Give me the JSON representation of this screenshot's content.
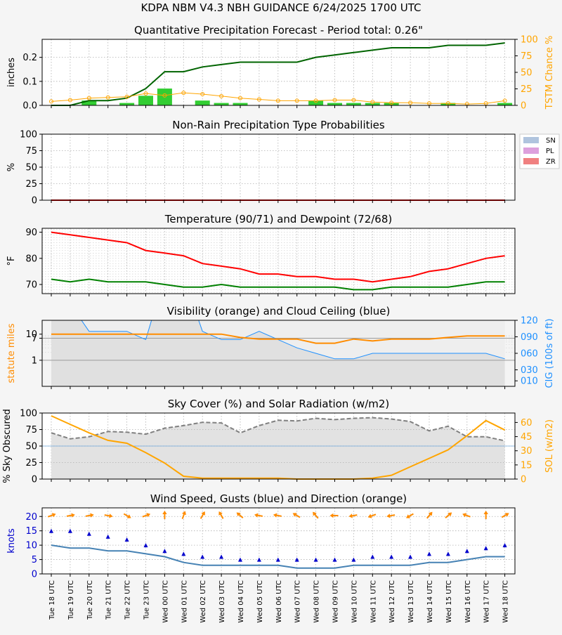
{
  "header": {
    "title": "KDPA   NBM V4.3 NBH GUIDANCE    6/24/2025  1700 UTC"
  },
  "colors": {
    "qpf_line": "#006400",
    "qpf_bar": "#32cd32",
    "tstm": "#ffa500",
    "sn": "#b0c4de",
    "pl": "#dda0dd",
    "zr": "#f08080",
    "nonrain_line": "#d00000",
    "temp": "#ff0000",
    "dew": "#008000",
    "vis": "#ff8c00",
    "cig": "#1e90ff",
    "sky_line": "#808080",
    "sky_fill": "#e2e2e2",
    "sol": "#ffa500",
    "wind": "#4682b4",
    "gust": "#0000cd",
    "dir": "#ff8c00",
    "axis_blue": "#0000cd"
  },
  "chart_data": [
    {
      "id": "qpf",
      "type": "bar",
      "title": "Quantitative Precipitation Forecast - Period total: 0.26\"",
      "ylabel": "inches",
      "ylabel_right": "TSTM Chance %",
      "ylim": [
        0,
        0.275
      ],
      "yticks": [
        "0.0",
        "0.1",
        "0.2"
      ],
      "ytick_values": [
        0,
        0.1,
        0.2
      ],
      "ylim_right": [
        0,
        100
      ],
      "yticks_right": [
        "0",
        "25",
        "50",
        "75",
        "100"
      ],
      "series": [
        {
          "name": "QPF hourly",
          "kind": "bar",
          "values": [
            0,
            0,
            0.02,
            0,
            0.01,
            0.04,
            0.07,
            0,
            0.02,
            0.01,
            0.01,
            0,
            0,
            0,
            0.02,
            0.01,
            0.01,
            0.01,
            0.01,
            0,
            0,
            0.01,
            0,
            0,
            0.01
          ]
        },
        {
          "name": "QPF accumulated",
          "kind": "line",
          "values": [
            0,
            0,
            0.02,
            0.02,
            0.03,
            0.07,
            0.14,
            0.14,
            0.16,
            0.17,
            0.18,
            0.18,
            0.18,
            0.18,
            0.2,
            0.21,
            0.22,
            0.23,
            0.24,
            0.24,
            0.24,
            0.25,
            0.25,
            0.25,
            0.26
          ]
        },
        {
          "name": "TSTM",
          "kind": "line",
          "axis": "right",
          "values": [
            6,
            8,
            11,
            12,
            13,
            18,
            15,
            19,
            17,
            14,
            11,
            9,
            7,
            7,
            7,
            8,
            8,
            5,
            4,
            4,
            3,
            3,
            2,
            3,
            7
          ]
        }
      ]
    },
    {
      "id": "ptype",
      "type": "area",
      "title": "Non-Rain Precipitation Type Probabilities",
      "ylabel": "%",
      "ylim": [
        0,
        100
      ],
      "yticks": [
        "0",
        "25",
        "50",
        "75",
        "100"
      ],
      "legend": [
        "SN",
        "PL",
        "ZR"
      ],
      "legend_position": "right",
      "series": [
        {
          "name": "SN",
          "values": [
            0,
            0,
            0,
            0,
            0,
            0,
            0,
            0,
            0,
            0,
            0,
            0,
            0,
            0,
            0,
            0,
            0,
            0,
            0,
            0,
            0,
            0,
            0,
            0,
            0
          ]
        },
        {
          "name": "PL",
          "values": [
            0,
            0,
            0,
            0,
            0,
            0,
            0,
            0,
            0,
            0,
            0,
            0,
            0,
            0,
            0,
            0,
            0,
            0,
            0,
            0,
            0,
            0,
            0,
            0,
            0
          ]
        },
        {
          "name": "ZR",
          "values": [
            0,
            0,
            0,
            0,
            0,
            0,
            0,
            0,
            0,
            0,
            0,
            0,
            0,
            0,
            0,
            0,
            0,
            0,
            0,
            0,
            0,
            0,
            0,
            0,
            0
          ]
        }
      ]
    },
    {
      "id": "temp",
      "type": "line",
      "title": "Temperature (90/71) and Dewpoint (72/68)",
      "ylabel": "°F",
      "ylim": [
        66.5,
        91.5
      ],
      "yticks": [
        "70",
        "80",
        "90"
      ],
      "ytick_values": [
        70,
        80,
        90
      ],
      "series": [
        {
          "name": "Temperature",
          "values": [
            90,
            89,
            88,
            87,
            86,
            83,
            82,
            81,
            78,
            77,
            76,
            74,
            74,
            73,
            73,
            72,
            72,
            71,
            72,
            73,
            75,
            76,
            78,
            80,
            81
          ]
        },
        {
          "name": "Dewpoint",
          "values": [
            72,
            71,
            72,
            71,
            71,
            71,
            70,
            69,
            69,
            70,
            69,
            69,
            69,
            69,
            69,
            69,
            68,
            68,
            69,
            69,
            69,
            69,
            70,
            71,
            71
          ]
        }
      ]
    },
    {
      "id": "vis",
      "type": "line",
      "title": "Visibility (orange) and Cloud Ceiling (blue)",
      "ylabel": "statute miles",
      "ylabel_right": "CIG (100s of ft)",
      "yticks": [
        "1",
        "7",
        "10"
      ],
      "ytick_values": [
        1,
        7,
        10
      ],
      "yticks_right": [
        "010",
        "030",
        "060",
        "090",
        "120"
      ],
      "ytick_values_right": [
        10,
        30,
        60,
        90,
        120
      ],
      "series": [
        {
          "name": "Visibility",
          "values": [
            10,
            10,
            10,
            10,
            10,
            10,
            10,
            10,
            10,
            10,
            7.5,
            6.5,
            6.5,
            6.5,
            4.5,
            4.5,
            6.5,
            5.5,
            6.5,
            6.5,
            6.5,
            7.5,
            8.5,
            8.5,
            8.5
          ]
        },
        {
          "name": "Cloud Ceiling",
          "values": [
            200,
            150,
            100,
            100,
            100,
            85,
            200,
            200,
            100,
            85,
            85,
            100,
            85,
            70,
            60,
            50,
            50,
            60,
            60,
            60,
            60,
            60,
            60,
            60,
            50
          ]
        }
      ]
    },
    {
      "id": "sky",
      "type": "line",
      "title": "Sky Cover (%) and Solar Radiation (w/m2)",
      "ylabel": "% Sky Obscured",
      "ylabel_right": "SOL (w/m2)",
      "ylim": [
        0,
        100
      ],
      "yticks": [
        "0",
        "25",
        "50",
        "75",
        "100"
      ],
      "ylim_right": [
        0,
        70
      ],
      "yticks_right": [
        "0",
        "15",
        "30",
        "45",
        "60"
      ],
      "ytick_values_right": [
        0,
        15,
        30,
        45,
        60
      ],
      "series": [
        {
          "name": "Sky Cover",
          "values": [
            70,
            61,
            64,
            72,
            71,
            68,
            77,
            81,
            86,
            85,
            70,
            81,
            89,
            88,
            92,
            90,
            92,
            93,
            91,
            87,
            73,
            80,
            64,
            64,
            58
          ]
        },
        {
          "name": "Solar Radiation",
          "values": [
            67,
            58,
            49,
            41,
            38,
            28,
            17,
            3,
            1,
            1,
            1,
            1,
            1,
            0,
            0,
            0,
            0,
            1,
            4,
            13,
            22,
            31,
            46,
            62,
            52
          ]
        }
      ]
    },
    {
      "id": "wind",
      "type": "line",
      "title": "Wind Speed, Gusts (blue) and Direction (orange)",
      "ylabel": "knots",
      "ylim": [
        0,
        23
      ],
      "yticks": [
        "0",
        "5",
        "10",
        "15",
        "20"
      ],
      "ytick_values": [
        0,
        5,
        10,
        15,
        20
      ],
      "series": [
        {
          "name": "Wind Speed",
          "values": [
            10,
            9,
            9,
            8,
            8,
            7,
            6,
            4,
            3,
            3,
            3,
            3,
            3,
            2,
            2,
            2,
            3,
            3,
            3,
            3,
            4,
            4,
            5,
            6,
            6
          ]
        },
        {
          "name": "Gusts",
          "values": [
            15,
            15,
            14,
            13,
            12,
            10,
            8,
            7,
            6,
            6,
            5,
            5,
            5,
            5,
            5,
            5,
            5,
            6,
            6,
            6,
            7,
            7,
            8,
            9,
            10
          ]
        },
        {
          "name": "Direction",
          "values": [
            250,
            260,
            260,
            280,
            300,
            250,
            180,
            200,
            210,
            150,
            130,
            100,
            100,
            120,
            140,
            90,
            80,
            70,
            80,
            60,
            220,
            230,
            110,
            180,
            240
          ]
        }
      ]
    }
  ],
  "x": {
    "categories": [
      "Tue 18 UTC",
      "Tue 19 UTC",
      "Tue 20 UTC",
      "Tue 21 UTC",
      "Tue 22 UTC",
      "Tue 23 UTC",
      "Wed 00 UTC",
      "Wed 01 UTC",
      "Wed 02 UTC",
      "Wed 03 UTC",
      "Wed 04 UTC",
      "Wed 05 UTC",
      "Wed 06 UTC",
      "Wed 07 UTC",
      "Wed 08 UTC",
      "Wed 09 UTC",
      "Wed 10 UTC",
      "Wed 11 UTC",
      "Wed 12 UTC",
      "Wed 13 UTC",
      "Wed 14 UTC",
      "Wed 15 UTC",
      "Wed 16 UTC",
      "Wed 17 UTC",
      "Wed 18 UTC"
    ]
  }
}
